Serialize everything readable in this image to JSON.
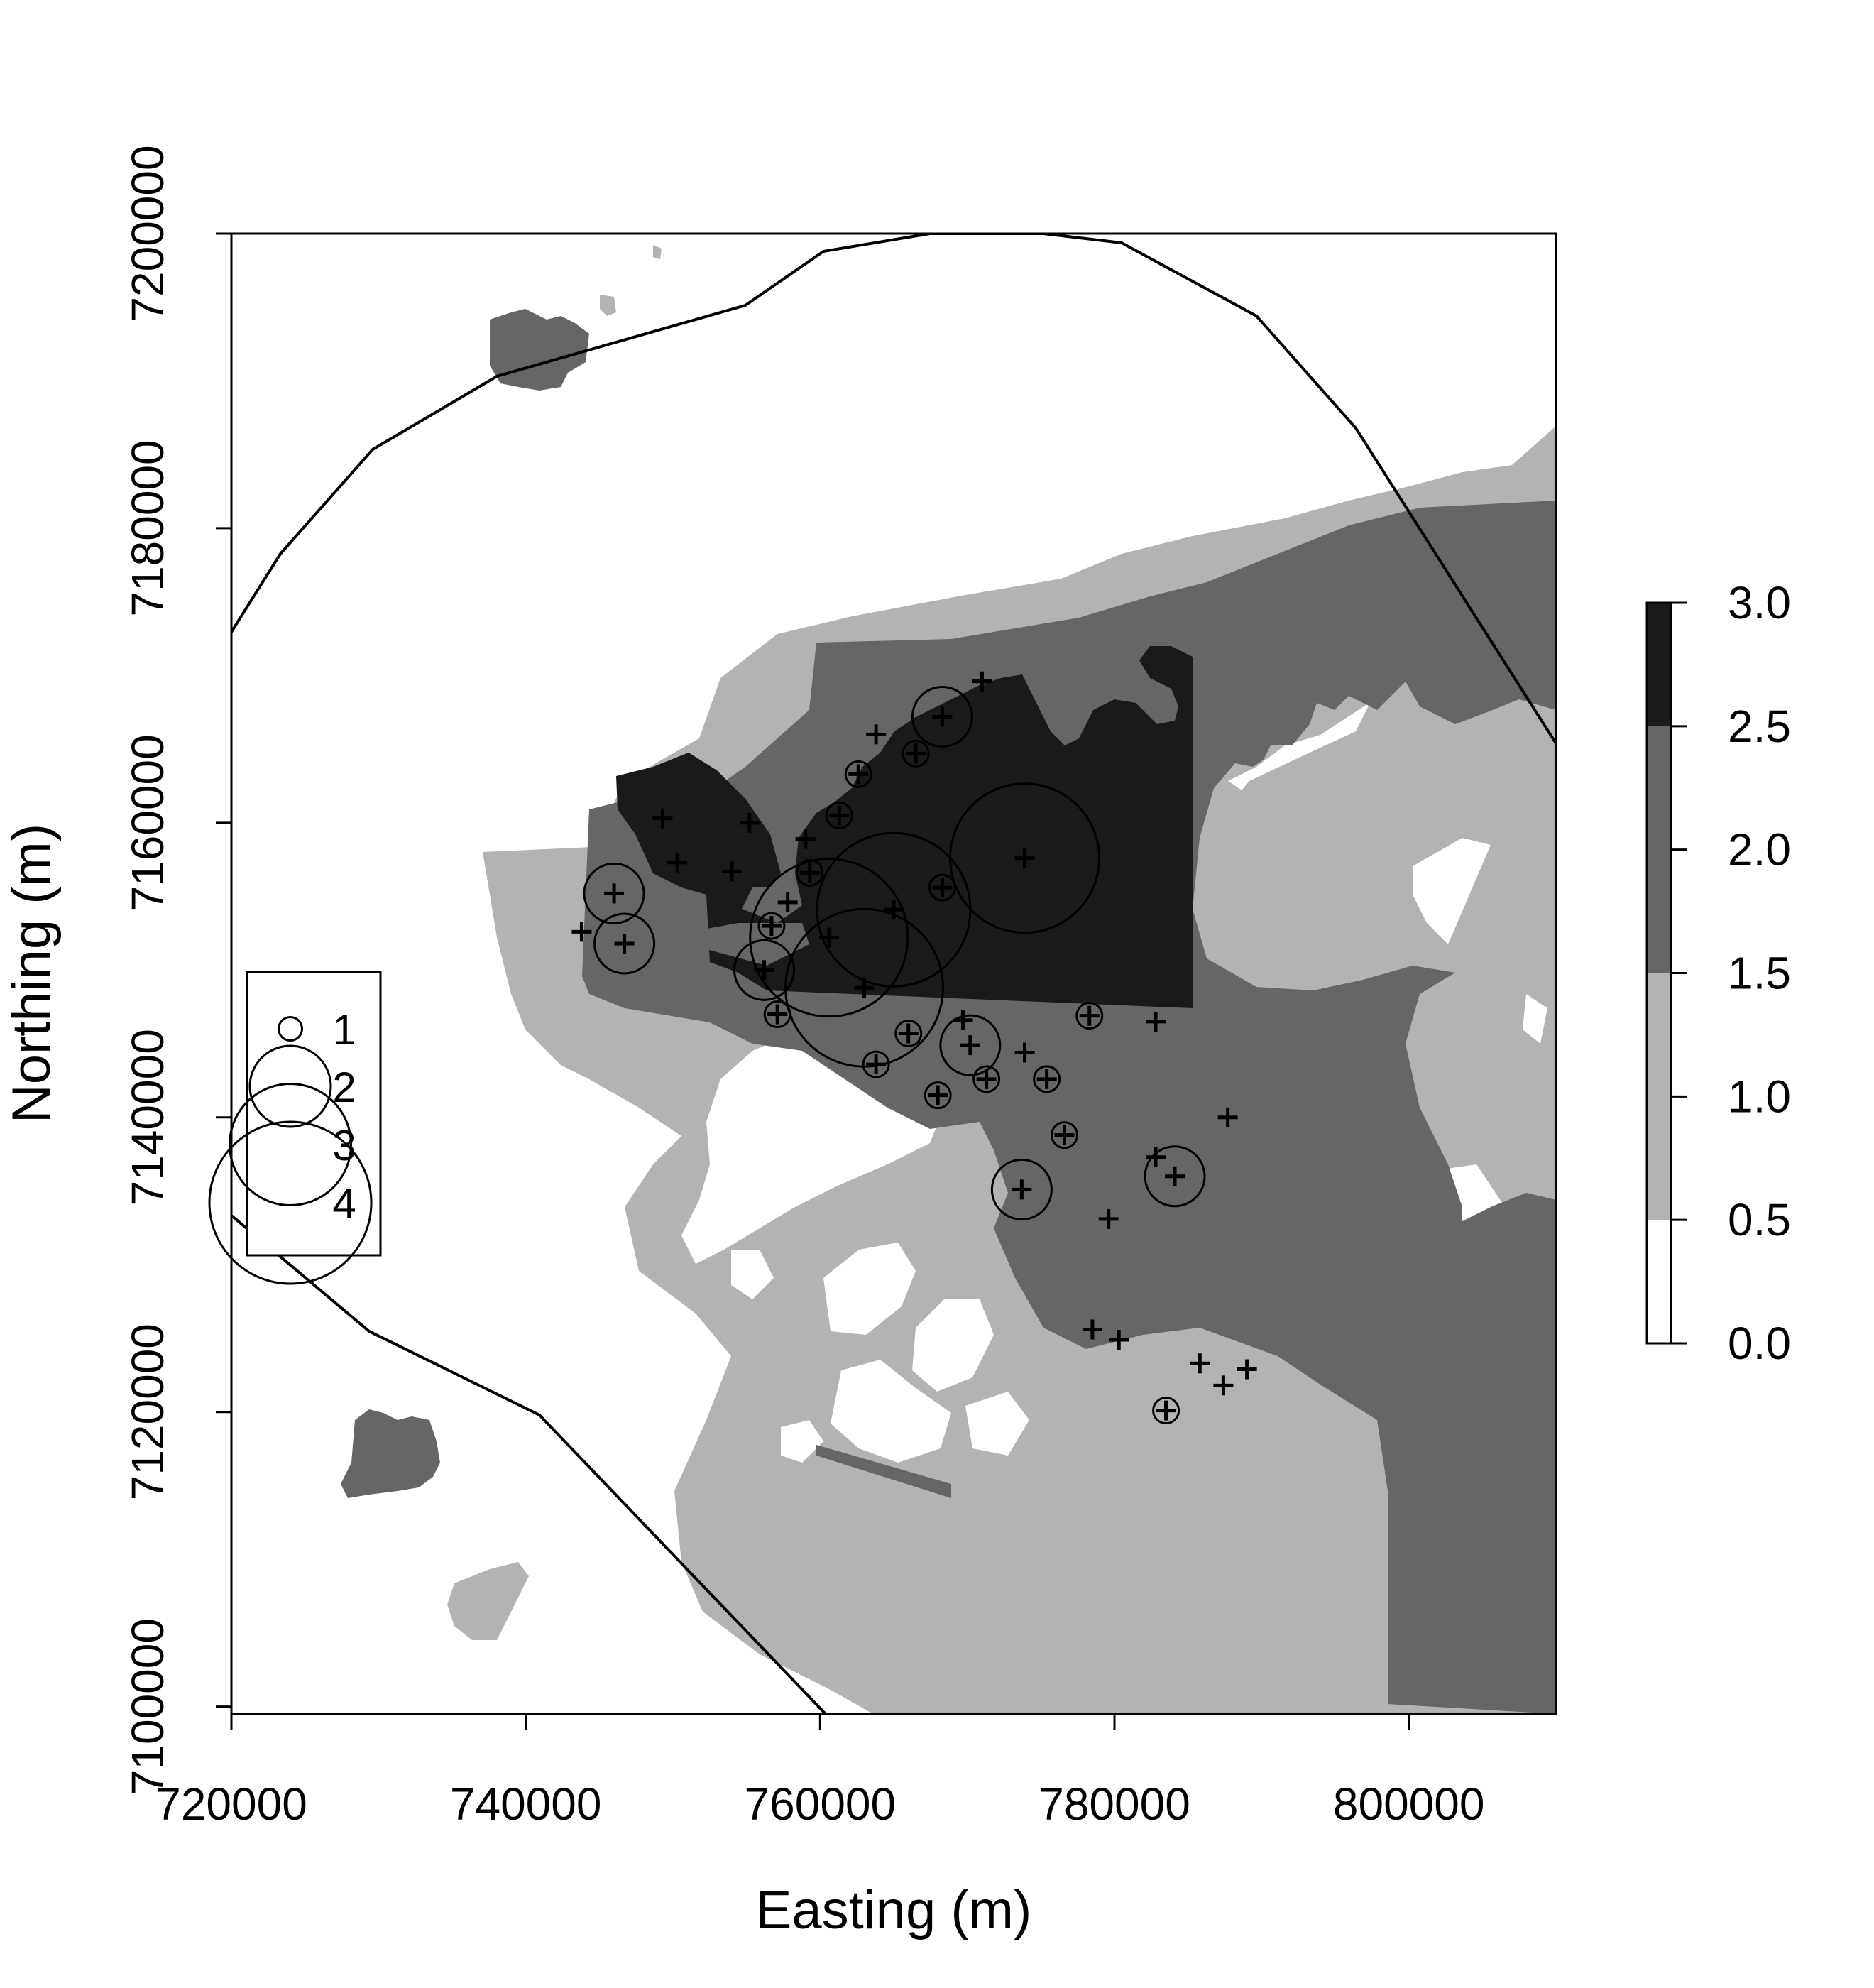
{
  "axes": {
    "xlabel": "Easting (m)",
    "ylabel": "Northing (m)",
    "xticks": [
      "720000",
      "740000",
      "760000",
      "780000",
      "800000"
    ],
    "yticks": [
      "7100000",
      "7120000",
      "7140000",
      "7160000",
      "7180000",
      "7200000"
    ],
    "xlim": [
      720000,
      810000
    ],
    "ylim": [
      7099500,
      7200000
    ]
  },
  "colorbar": {
    "labels": [
      "0.0",
      "0.5",
      "1.0",
      "1.5",
      "2.0",
      "2.5",
      "3.0"
    ],
    "classes": [
      {
        "range": [
          0.0,
          0.5
        ],
        "color": "#ffffff"
      },
      {
        "range": [
          0.5,
          1.5
        ],
        "color": "#b3b3b3"
      },
      {
        "range": [
          1.5,
          2.5
        ],
        "color": "#666666"
      },
      {
        "range": [
          2.5,
          3.0
        ],
        "color": "#1a1a1a"
      }
    ]
  },
  "size_legend": {
    "placement": "left",
    "entries": [
      "1",
      "2",
      "3",
      "4"
    ]
  },
  "colors": {
    "white": "#ffffff",
    "light_gray": "#b3b3b3",
    "dark_gray": "#666666",
    "black": "#1a1a1a"
  },
  "chart_data": {
    "type": "scatter",
    "grid": false,
    "samples_plus_only": [
      [
        743800,
        7152600
      ],
      [
        749300,
        7160300
      ],
      [
        750300,
        7157300
      ],
      [
        754000,
        7156700
      ],
      [
        755200,
        7160000
      ],
      [
        757800,
        7154600
      ],
      [
        759000,
        7158900
      ],
      [
        763800,
        7166000
      ],
      [
        769700,
        7146600
      ],
      [
        771000,
        7169600
      ],
      [
        773900,
        7144400
      ],
      [
        782800,
        7146500
      ],
      [
        782800,
        7137300
      ],
      [
        787700,
        7140000
      ],
      [
        779600,
        7133100
      ],
      [
        778500,
        7125600
      ],
      [
        780300,
        7124900
      ],
      [
        785800,
        7123300
      ],
      [
        787400,
        7121800
      ],
      [
        789000,
        7122900
      ]
    ],
    "samples_with_circle": [
      {
        "x": 746000,
        "y": 7155200,
        "size": 1.4
      },
      {
        "x": 746700,
        "y": 7151800,
        "size": 1.4
      },
      {
        "x": 756200,
        "y": 7150000,
        "size": 1.4
      },
      {
        "x": 756700,
        "y": 7153000,
        "size": 0.6
      },
      {
        "x": 757100,
        "y": 7147000,
        "size": 0.6
      },
      {
        "x": 759300,
        "y": 7156600,
        "size": 0.6
      },
      {
        "x": 760600,
        "y": 7152200,
        "size": 3.7
      },
      {
        "x": 761300,
        "y": 7160500,
        "size": 0.6
      },
      {
        "x": 762600,
        "y": 7163300,
        "size": 0.6
      },
      {
        "x": 763000,
        "y": 7148800,
        "size": 3.7
      },
      {
        "x": 763800,
        "y": 7143600,
        "size": 0.6
      },
      {
        "x": 765000,
        "y": 7154100,
        "size": 3.6
      },
      {
        "x": 766000,
        "y": 7145700,
        "size": 0.6
      },
      {
        "x": 766500,
        "y": 7164700,
        "size": 0.6
      },
      {
        "x": 768000,
        "y": 7141500,
        "size": 0.6
      },
      {
        "x": 768300,
        "y": 7155600,
        "size": 0.6
      },
      {
        "x": 768300,
        "y": 7167200,
        "size": 1.4
      },
      {
        "x": 770200,
        "y": 7144900,
        "size": 1.4
      },
      {
        "x": 771300,
        "y": 7142600,
        "size": 0.6
      },
      {
        "x": 773700,
        "y": 7135100,
        "size": 1.4
      },
      {
        "x": 773900,
        "y": 7157600,
        "size": 3.5
      },
      {
        "x": 775400,
        "y": 7142600,
        "size": 0.6
      },
      {
        "x": 776600,
        "y": 7138800,
        "size": 0.6
      },
      {
        "x": 778300,
        "y": 7146900,
        "size": 0.6
      },
      {
        "x": 783500,
        "y": 7120100,
        "size": 0.6
      },
      {
        "x": 784100,
        "y": 7136000,
        "size": 1.4
      }
    ],
    "size_legend_values": [
      1,
      2,
      3,
      4
    ]
  }
}
